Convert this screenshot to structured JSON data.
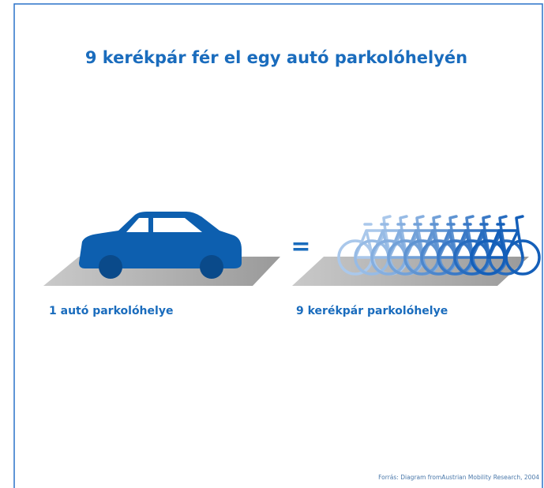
{
  "title": "9 kerékpár fér el egy autó parkolóhelyén",
  "car_label": "1 autó parkolóhelye",
  "equals": "=",
  "bike_label": "9 kerékpár parkolóhelye",
  "source": "Forrás: Diagram fromAustrian Mobility Research, 2004"
}
